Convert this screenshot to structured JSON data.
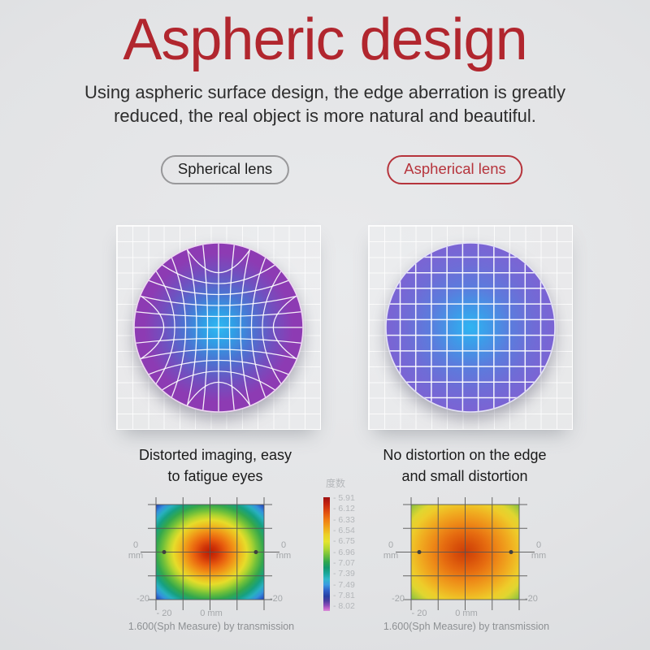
{
  "header": {
    "title": "Aspheric design",
    "subtitle": "Using aspheric surface design, the edge aberration is greatly\nreduced, the real object is more natural and beautiful."
  },
  "pills": {
    "spherical": "Spherical lens",
    "aspherical": "Aspherical lens"
  },
  "lenses": {
    "spherical_caption": "Distorted imaging, easy\nto fatigue eyes",
    "aspherical_caption": "No distortion on the edge\nand small distortion"
  },
  "heatmaps": {
    "legend": {
      "title": "度数",
      "ticks": [
        "- 5.91",
        "- 6.12",
        "- 6.33",
        "- 6.54",
        "- 6.75",
        "- 6.96",
        "- 7.07",
        "- 7.39",
        "- 7.49",
        "- 7.81",
        "- 8.02"
      ]
    },
    "axis": {
      "zero": "0",
      "mm": "mm",
      "neg20": "-20",
      "x_min": "- 20",
      "x_center": "0 mm"
    },
    "left_caption": "1.600(Sph Measure) by transmission",
    "right_caption": "1.600(Sph Measure) by transmission"
  },
  "colors": {
    "accent_red": "#b1262e",
    "pill_red": "#b6343c",
    "pill_gray_border": "#98989a",
    "lens_left_center": "#2fb9f2",
    "lens_left_edge": "#8d3bb3",
    "lens_right_center": "#2fb5f2",
    "lens_right_edge": "#7b64d4",
    "axis_label_gray": "#a4a7aa",
    "caption_gray": "#8d9093"
  },
  "chart_data": [
    {
      "type": "heatmap",
      "name": "spherical-lens-power-map",
      "title": "1.600(Sph Measure) by transmission",
      "x_axis": {
        "label": "mm",
        "visible_ticks": [
          "- 20",
          "0 mm",
          "-20"
        ]
      },
      "y_axis": {
        "label": "mm",
        "visible_ticks": [
          "0",
          "-20"
        ]
      },
      "x_range_mm": [
        -20,
        20
      ],
      "y_range_mm": [
        -20,
        20
      ],
      "legend_title": "度数",
      "legend_scale": [
        -5.91,
        -6.12,
        -6.33,
        -6.54,
        -6.75,
        -6.96,
        -7.07,
        -7.39,
        -7.49,
        -7.81,
        -8.02
      ],
      "description": "Radial power map: about -5.91 (deep red) at center, falling through orange, yellow and green rings to about -8.02 (blue/violet) at the corners — large edge aberration."
    },
    {
      "type": "heatmap",
      "name": "aspherical-lens-power-map",
      "title": "1.600(Sph Measure) by transmission",
      "x_axis": {
        "label": "mm",
        "visible_ticks": [
          "- 20",
          "0 mm",
          "-20"
        ]
      },
      "y_axis": {
        "label": "mm",
        "visible_ticks": [
          "0",
          "-20"
        ]
      },
      "x_range_mm": [
        -20,
        20
      ],
      "y_range_mm": [
        -20,
        20
      ],
      "legend_title": "度数",
      "legend_scale": [
        -5.91,
        -6.12,
        -6.33,
        -6.54,
        -6.75,
        -6.96,
        -7.07,
        -7.39,
        -7.49,
        -7.81,
        -8.02
      ],
      "description": "Nearly uniform power map: orange-red center (~-6.1) varying only to yellow-green (~-6.8) at the corners — small edge aberration."
    }
  ]
}
